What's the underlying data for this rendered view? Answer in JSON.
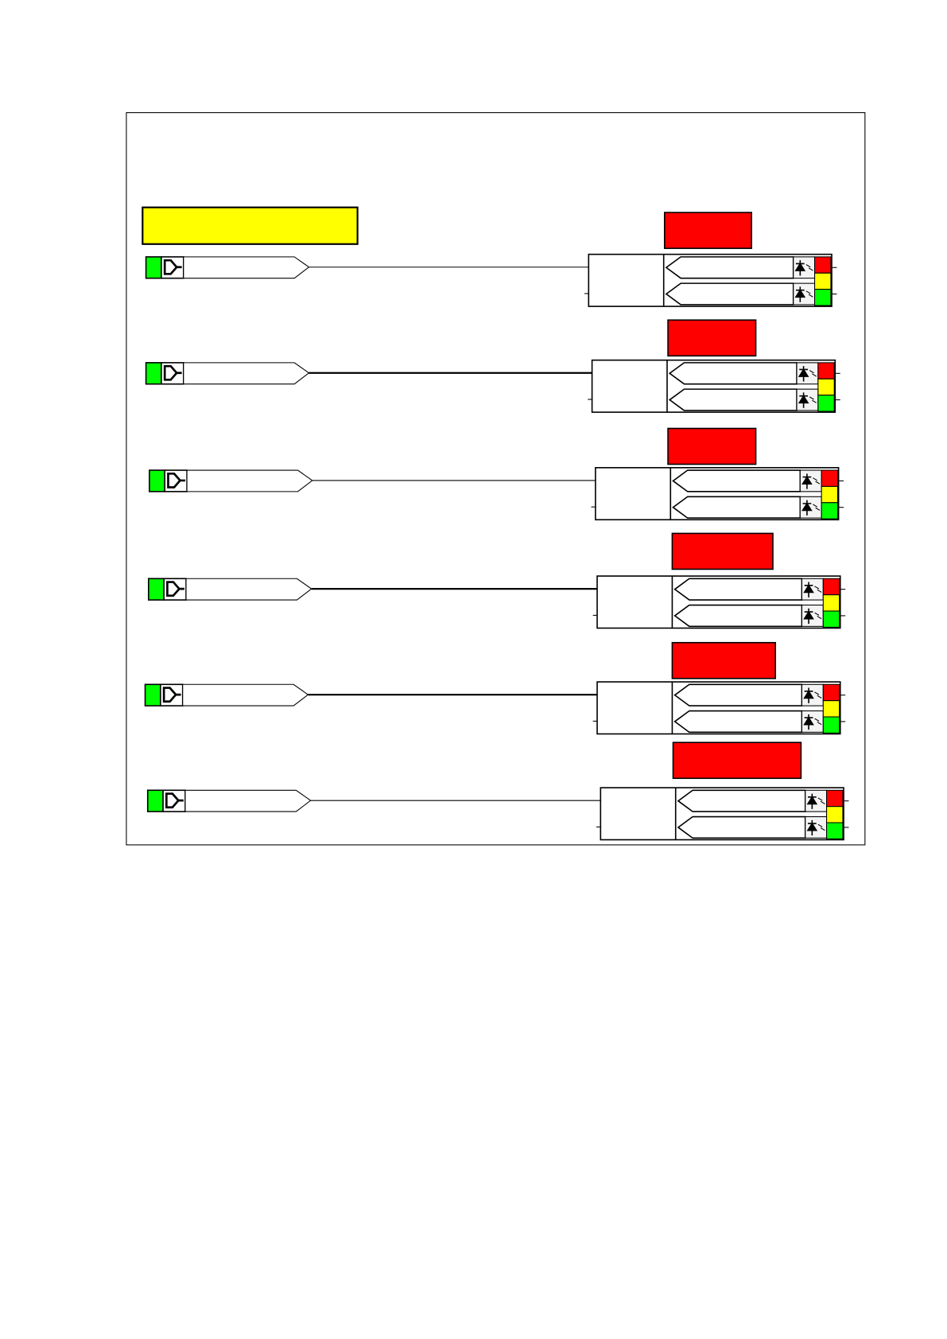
{
  "diagram": {
    "header_block_color": "#ffff00",
    "label_block_color": "#ff0000",
    "status_colors": {
      "red": "#ff0000",
      "yellow": "#ffff00",
      "green": "#00ff00"
    },
    "source_indicator_color": "#00ff00",
    "line_color": "#000000",
    "icons": [
      "connector-icon",
      "photodiode-icon"
    ],
    "channel_count": 6
  }
}
